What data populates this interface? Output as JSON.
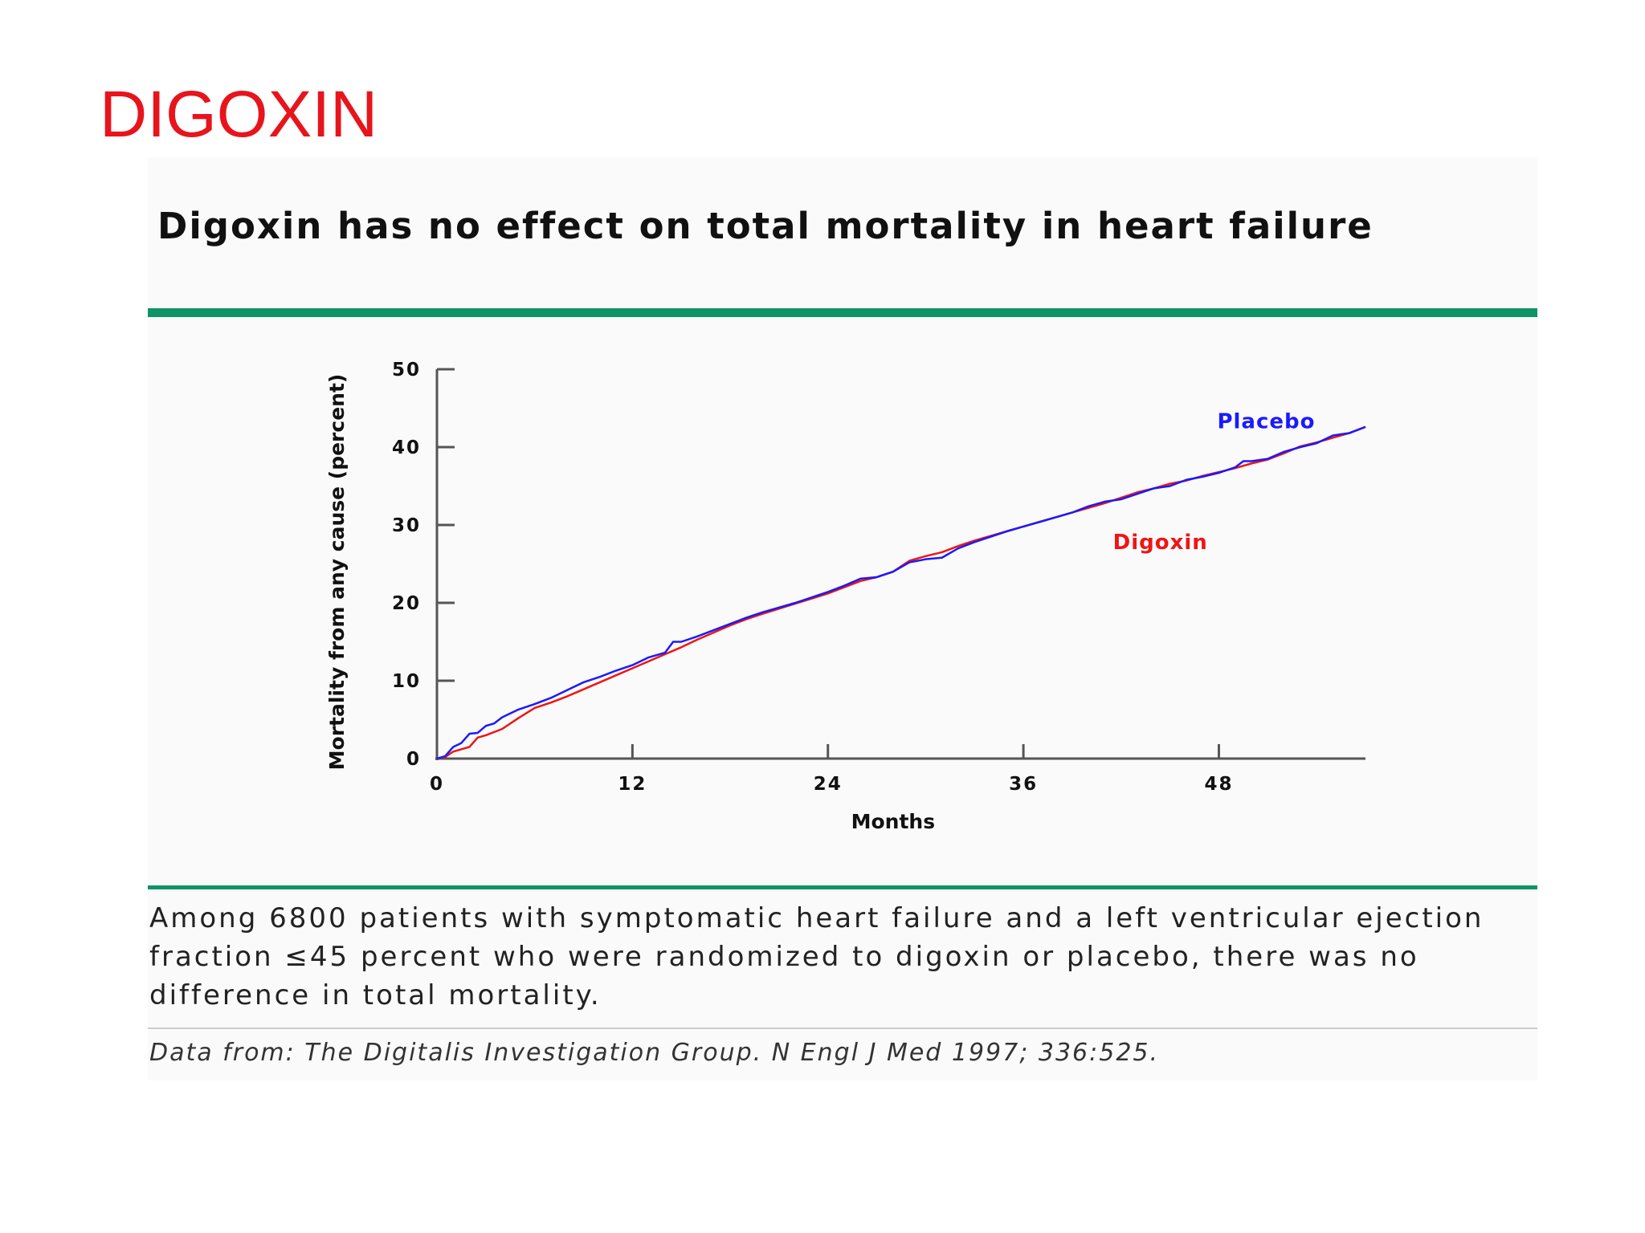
{
  "slide": {
    "title": "DIGOXIN"
  },
  "figure": {
    "title": "Digoxin has no effect on total mortality in heart failure",
    "caption": "Among 6800 patients with symptomatic heart failure and a left ventricular ejection fraction ≤45 percent who were randomized to digoxin or placebo, there was no difference in total mortality.",
    "source": "Data from: The Digitalis Investigation Group. N Engl J Med 1997; 336:525."
  },
  "colors": {
    "slide_title": "#e8141c",
    "rule": "#0f9467",
    "placebo": "#1a1aff",
    "digoxin": "#f01414"
  },
  "chart_data": {
    "type": "line",
    "title": "",
    "xlabel": "Months",
    "ylabel": "Mortality from any cause (percent)",
    "xlim": [
      0,
      57
    ],
    "ylim": [
      0,
      50
    ],
    "xticks": [
      0,
      12,
      24,
      36,
      48
    ],
    "yticks": [
      0,
      10,
      20,
      30,
      40,
      50
    ],
    "legend": "inline labels",
    "grid": false,
    "series": [
      {
        "name": "Placebo",
        "color": "#1a1aff",
        "points": [
          [
            0,
            0
          ],
          [
            0.5,
            0.3
          ],
          [
            1,
            1.5
          ],
          [
            1.5,
            2
          ],
          [
            2,
            3.2
          ],
          [
            2.5,
            3.3
          ],
          [
            3,
            4.2
          ],
          [
            3.5,
            4.5
          ],
          [
            4,
            5.3
          ],
          [
            5,
            6.3
          ],
          [
            6,
            7
          ],
          [
            7,
            7.8
          ],
          [
            8,
            8.8
          ],
          [
            9,
            9.8
          ],
          [
            10,
            10.5
          ],
          [
            11,
            11.3
          ],
          [
            12,
            12
          ],
          [
            13,
            13
          ],
          [
            14,
            13.6
          ],
          [
            14.5,
            15
          ],
          [
            15,
            15
          ],
          [
            16,
            15.7
          ],
          [
            17,
            16.5
          ],
          [
            18,
            17.3
          ],
          [
            19,
            18.1
          ],
          [
            20,
            18.8
          ],
          [
            22,
            20
          ],
          [
            24,
            21.4
          ],
          [
            25,
            22.2
          ],
          [
            26,
            23.1
          ],
          [
            27,
            23.3
          ],
          [
            28,
            24
          ],
          [
            29,
            25.2
          ],
          [
            30,
            25.6
          ],
          [
            31,
            25.8
          ],
          [
            32,
            27
          ],
          [
            33,
            27.8
          ],
          [
            34,
            28.5
          ],
          [
            35,
            29.2
          ],
          [
            36,
            29.8
          ],
          [
            37,
            30.4
          ],
          [
            38,
            31
          ],
          [
            39,
            31.6
          ],
          [
            40,
            32.4
          ],
          [
            41,
            33
          ],
          [
            42,
            33.3
          ],
          [
            43,
            34
          ],
          [
            44,
            34.7
          ],
          [
            45,
            35
          ],
          [
            46,
            35.8
          ],
          [
            47,
            36.2
          ],
          [
            48,
            36.7
          ],
          [
            49,
            37.4
          ],
          [
            49.5,
            38.2
          ],
          [
            50,
            38.2
          ],
          [
            51,
            38.5
          ],
          [
            52,
            39.4
          ],
          [
            53,
            40
          ],
          [
            54,
            40.5
          ],
          [
            55,
            41.5
          ],
          [
            56,
            41.8
          ],
          [
            57,
            42.6
          ]
        ]
      },
      {
        "name": "Digoxin",
        "color": "#f01414",
        "points": [
          [
            0,
            0
          ],
          [
            0.5,
            0.2
          ],
          [
            1,
            0.9
          ],
          [
            2,
            1.5
          ],
          [
            2.5,
            2.7
          ],
          [
            3,
            3
          ],
          [
            4,
            3.8
          ],
          [
            5,
            5.2
          ],
          [
            6,
            6.5
          ],
          [
            7,
            7.2
          ],
          [
            8,
            8
          ],
          [
            9,
            8.9
          ],
          [
            10,
            9.8
          ],
          [
            11,
            10.7
          ],
          [
            12,
            11.6
          ],
          [
            13,
            12.5
          ],
          [
            14,
            13.4
          ],
          [
            15,
            14.3
          ],
          [
            16,
            15.3
          ],
          [
            17,
            16.2
          ],
          [
            18,
            17.1
          ],
          [
            19,
            17.9
          ],
          [
            20,
            18.6
          ],
          [
            22,
            19.9
          ],
          [
            24,
            21.2
          ],
          [
            25,
            22
          ],
          [
            26,
            22.8
          ],
          [
            27,
            23.3
          ],
          [
            28,
            24
          ],
          [
            29,
            25.4
          ],
          [
            30,
            26
          ],
          [
            31,
            26.5
          ],
          [
            32,
            27.3
          ],
          [
            33,
            28
          ],
          [
            34,
            28.6
          ],
          [
            35,
            29.2
          ],
          [
            36,
            29.8
          ],
          [
            37,
            30.4
          ],
          [
            38,
            31
          ],
          [
            39,
            31.6
          ],
          [
            40,
            32.2
          ],
          [
            41,
            32.8
          ],
          [
            42,
            33.5
          ],
          [
            43,
            34.2
          ],
          [
            44,
            34.7
          ],
          [
            45,
            35.3
          ],
          [
            46,
            35.7
          ],
          [
            47,
            36.3
          ],
          [
            48,
            36.8
          ],
          [
            49,
            37.3
          ],
          [
            50,
            37.9
          ],
          [
            51,
            38.4
          ],
          [
            52,
            39.2
          ],
          [
            53,
            40.1
          ],
          [
            54,
            40.6
          ],
          [
            55,
            41.2
          ],
          [
            56,
            41.8
          ],
          [
            57,
            42.6
          ]
        ]
      }
    ]
  }
}
